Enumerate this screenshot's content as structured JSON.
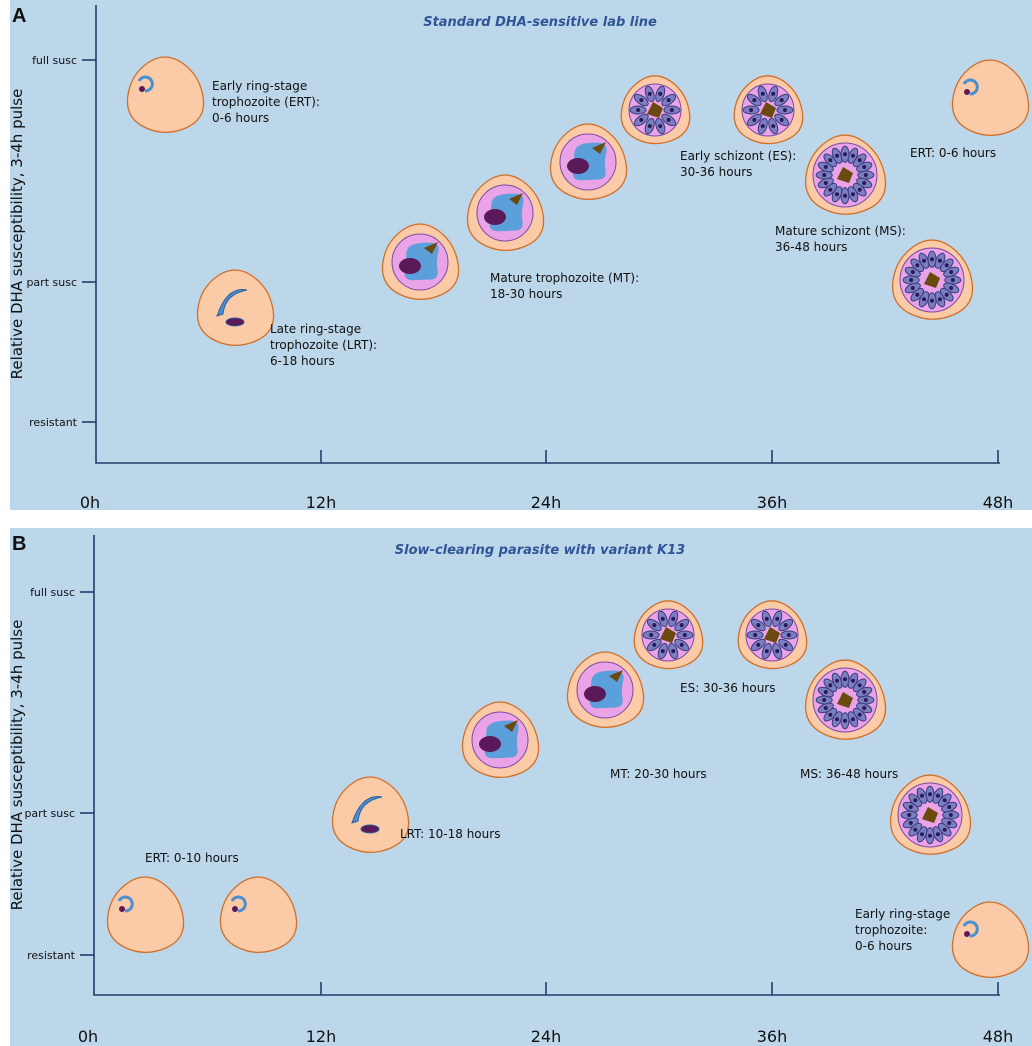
{
  "panels": [
    {
      "label": "A",
      "title": "Standard DHA-sensitive lab line",
      "y_axis_label": "Relative DHA susceptibility, 3-4h pulse",
      "y_ticks": [
        "full susc",
        "part susc",
        "resistant"
      ],
      "x_ticks": [
        "0h",
        "12h",
        "24h",
        "36h",
        "48h"
      ],
      "stage_labels": [
        [
          "Early ring-stage",
          "trophozoite (ERT):",
          "0-6 hours"
        ],
        [
          "Late ring-stage",
          "trophozoite (LRT):",
          "6-18 hours"
        ],
        [
          "Mature trophozoite (MT):",
          "18-30 hours"
        ],
        [
          "Early schizont (ES):",
          "30-36 hours"
        ],
        [
          "Mature schizont (MS):",
          "36-48 hours"
        ],
        [
          "ERT: 0-6 hours"
        ]
      ]
    },
    {
      "label": "B",
      "title": "Slow-clearing parasite with variant K13",
      "y_axis_label": "Relative DHA susceptibility, 3-4h pulse",
      "y_ticks": [
        "full susc",
        "part susc",
        "resistant"
      ],
      "x_ticks": [
        "0h",
        "12h",
        "24h",
        "36h",
        "48h"
      ],
      "stage_labels": [
        [
          "ERT: 0-10 hours"
        ],
        [
          "LRT: 10-18 hours"
        ],
        [
          "MT: 20-30 hours"
        ],
        [
          "ES: 30-36 hours"
        ],
        [
          "MS: 36-48 hours"
        ],
        [
          "Early ring-stage",
          "trophozoite:",
          "0-6 hours"
        ]
      ]
    }
  ]
}
